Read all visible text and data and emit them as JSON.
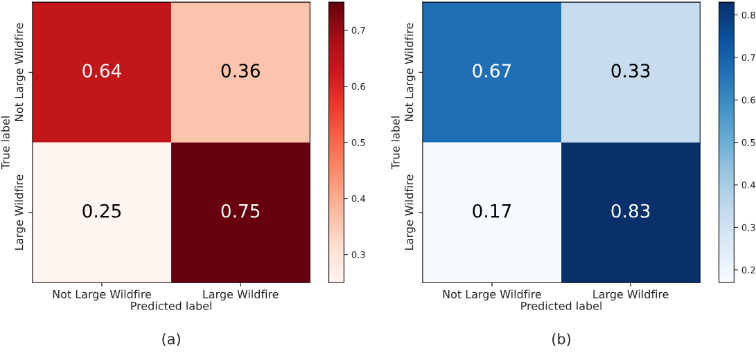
{
  "chart_data": [
    {
      "type": "heatmap",
      "categories": [
        "Not Large Wildfire",
        "Large Wildfire"
      ],
      "y_categories": [
        "Not Large Wildfire",
        "Large Wildfire"
      ],
      "cells": [
        [
          0.64,
          0.36
        ],
        [
          0.25,
          0.75
        ]
      ],
      "data_labels": true,
      "xlabel": "Predicted label",
      "ylabel": "True label",
      "clim": [
        0.25,
        0.75
      ],
      "cticks": [
        0.3,
        0.4,
        0.5,
        0.6,
        0.7
      ],
      "colors": [
        "#fff5f0",
        "#fee0d2",
        "#fcbba1",
        "#fc9272",
        "#fb6a4a",
        "#ef3b2c",
        "#cb181d",
        "#a50f15",
        "#67000d"
      ],
      "annotations": [
        "(a)"
      ]
    },
    {
      "type": "heatmap",
      "categories": [
        "Not Large Wildfire",
        "Large Wildfire"
      ],
      "y_categories": [
        "Not Large Wildfire",
        "Large Wildfire"
      ],
      "cells": [
        [
          0.67,
          0.33
        ],
        [
          0.17,
          0.83
        ]
      ],
      "data_labels": true,
      "xlabel": "Predicted label",
      "ylabel": "True label",
      "clim": [
        0.17,
        0.83
      ],
      "cticks": [
        0.2,
        0.3,
        0.4,
        0.5,
        0.6,
        0.7,
        0.8
      ],
      "colors": [
        "#f7fbff",
        "#deebf7",
        "#c6dbef",
        "#9ecae1",
        "#6baed6",
        "#4292c6",
        "#2171b5",
        "#08519c",
        "#08306b"
      ],
      "annotations": [
        "(b)"
      ]
    }
  ]
}
